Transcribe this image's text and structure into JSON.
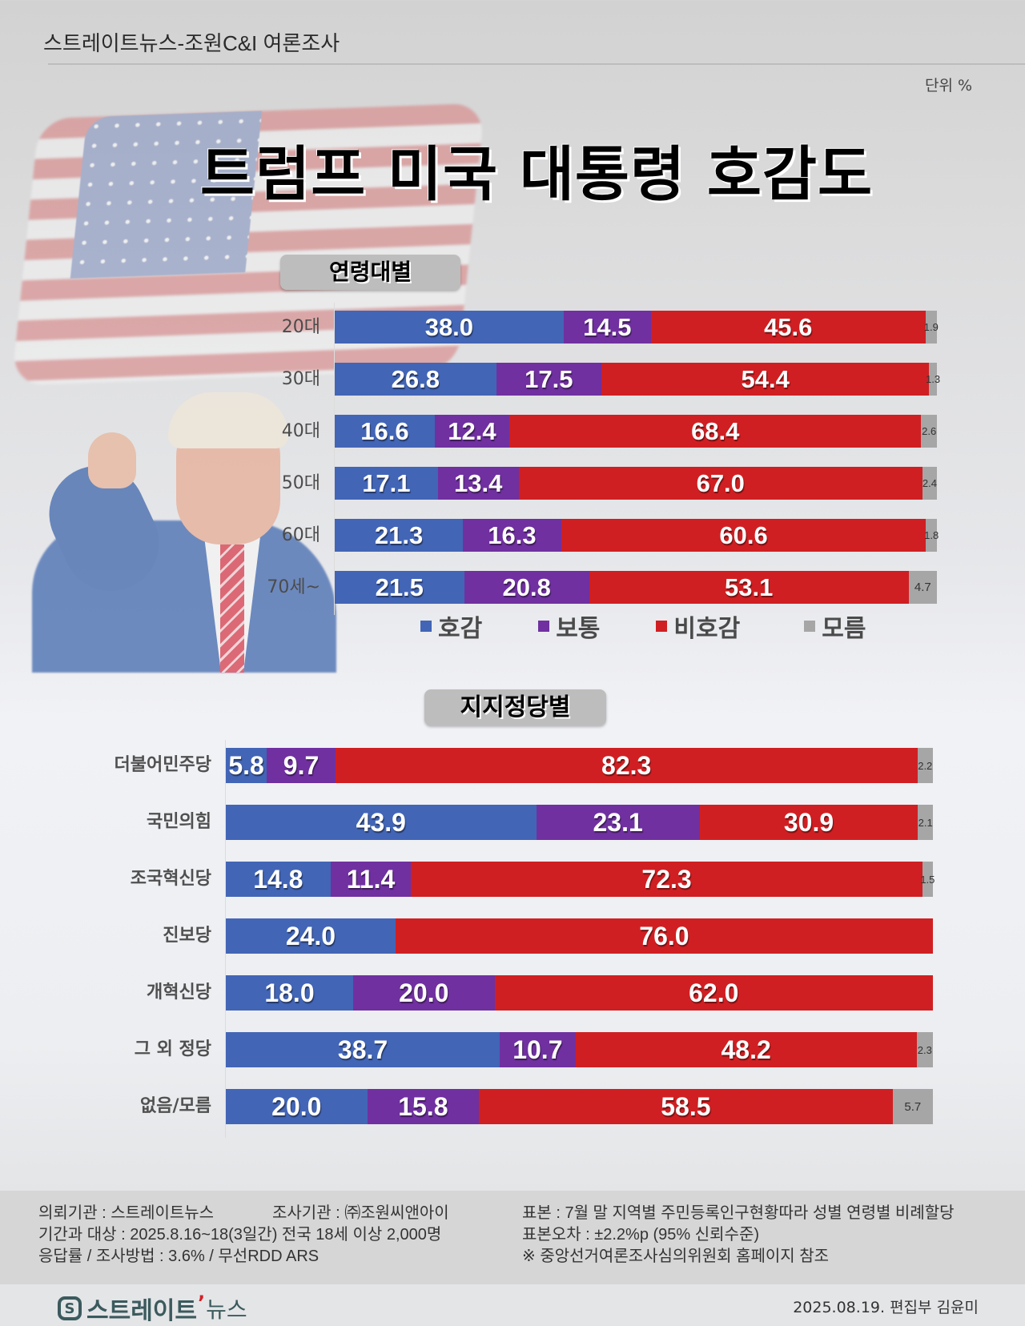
{
  "header": {
    "source": "스트레이트뉴스-조원C&I 여론조사",
    "unit": "단위 %"
  },
  "title": "트럼프 미국 대통령 호감도",
  "colors": {
    "favorable": "#4265b6",
    "neutral": "#7030a0",
    "unfavorable": "#d01f22",
    "unknown": "#a6a6a6"
  },
  "legend": [
    {
      "label": "호감",
      "color": "#4265b6"
    },
    {
      "label": "보통",
      "color": "#7030a0"
    },
    {
      "label": "비호감",
      "color": "#d01f22"
    },
    {
      "label": "모름",
      "color": "#a6a6a6"
    }
  ],
  "age_section": {
    "title": "연령대별"
  },
  "party_section": {
    "title": "지지정당별"
  },
  "chart_data": [
    {
      "type": "bar",
      "orientation": "horizontal",
      "stacked": true,
      "title": "트럼프 미국 대통령 호감도 - 연령대별",
      "unit": "%",
      "categories": [
        "20대",
        "30대",
        "40대",
        "50대",
        "60대",
        "70세~"
      ],
      "series": [
        {
          "name": "호감",
          "color": "#4265b6",
          "values": [
            38.0,
            26.8,
            16.6,
            17.1,
            21.3,
            21.5
          ]
        },
        {
          "name": "보통",
          "color": "#7030a0",
          "values": [
            14.5,
            17.5,
            12.4,
            13.4,
            16.3,
            20.8
          ]
        },
        {
          "name": "비호감",
          "color": "#d01f22",
          "values": [
            45.6,
            54.4,
            68.4,
            67.0,
            60.6,
            53.1
          ]
        },
        {
          "name": "모름",
          "color": "#a6a6a6",
          "values": [
            1.9,
            1.3,
            2.6,
            2.4,
            1.8,
            4.7
          ]
        }
      ],
      "xlim": [
        0,
        100
      ],
      "legend_position": "bottom",
      "grid": false
    },
    {
      "type": "bar",
      "orientation": "horizontal",
      "stacked": true,
      "title": "트럼프 미국 대통령 호감도 - 지지정당별",
      "unit": "%",
      "categories": [
        "더불어민주당",
        "국민의힘",
        "조국혁신당",
        "진보당",
        "개혁신당",
        "그 외 정당",
        "없음/모름"
      ],
      "series": [
        {
          "name": "호감",
          "color": "#4265b6",
          "values": [
            5.8,
            43.9,
            14.8,
            24.0,
            18.0,
            38.7,
            20.0
          ]
        },
        {
          "name": "보통",
          "color": "#7030a0",
          "values": [
            9.7,
            23.1,
            11.4,
            0,
            20.0,
            10.7,
            15.8
          ]
        },
        {
          "name": "비호감",
          "color": "#d01f22",
          "values": [
            82.3,
            30.9,
            72.3,
            76.0,
            62.0,
            48.2,
            58.5
          ]
        },
        {
          "name": "모름",
          "color": "#a6a6a6",
          "values": [
            2.2,
            2.1,
            1.5,
            0,
            0,
            2.3,
            5.7
          ]
        }
      ],
      "xlim": [
        0,
        100
      ],
      "grid": false
    }
  ],
  "age_rows": [
    {
      "label": "20대",
      "v": [
        "38.0",
        "14.5",
        "45.6",
        "1.9"
      ]
    },
    {
      "label": "30대",
      "v": [
        "26.8",
        "17.5",
        "54.4",
        "1.3"
      ]
    },
    {
      "label": "40대",
      "v": [
        "16.6",
        "12.4",
        "68.4",
        "2.6"
      ]
    },
    {
      "label": "50대",
      "v": [
        "17.1",
        "13.4",
        "67.0",
        "2.4"
      ]
    },
    {
      "label": "60대",
      "v": [
        "21.3",
        "16.3",
        "60.6",
        "1.8"
      ]
    },
    {
      "label": "70세~",
      "v": [
        "21.5",
        "20.8",
        "53.1",
        "4.7"
      ]
    }
  ],
  "party_rows": [
    {
      "label": "더불어민주당",
      "v": [
        "5.8",
        "9.7",
        "82.3",
        "2.2"
      ]
    },
    {
      "label": "국민의힘",
      "v": [
        "43.9",
        "23.1",
        "30.9",
        "2.1"
      ]
    },
    {
      "label": "조국혁신당",
      "v": [
        "14.8",
        "11.4",
        "72.3",
        "1.5"
      ]
    },
    {
      "label": "진보당",
      "v": [
        "24.0",
        "",
        "76.0",
        ""
      ]
    },
    {
      "label": "개혁신당",
      "v": [
        "18.0",
        "20.0",
        "62.0",
        ""
      ]
    },
    {
      "label": "그 외 정당",
      "v": [
        "38.7",
        "10.7",
        "48.2",
        "2.3"
      ]
    },
    {
      "label": "없음/모름",
      "v": [
        "20.0",
        "15.8",
        "58.5",
        "5.7"
      ]
    }
  ],
  "footer": {
    "left": [
      "의뢰기관 : 스트레이트뉴스",
      "기간과 대상 : 2025.8.16~18(3일간)   전국 18세 이상  2,000명",
      "응답률 / 조사방법 : 3.6% / 무선RDD ARS"
    ],
    "middle": "조사기관 : ㈜조원씨앤아이",
    "right": [
      "표본 : 7월 말 지역별 주민등록인구현황따라 성별 연령별 비례할당",
      "표본오차 : ±2.2%p (95% 신뢰수준)",
      "※ 중앙선거여론조사심의위원회 홈페이지 참조"
    ],
    "logo_mark": "S",
    "logo_text": "스트레이트",
    "logo_tick": "ʼ",
    "logo_news": "뉴스",
    "credit": "2025.08.19. 편집부 김윤미"
  }
}
